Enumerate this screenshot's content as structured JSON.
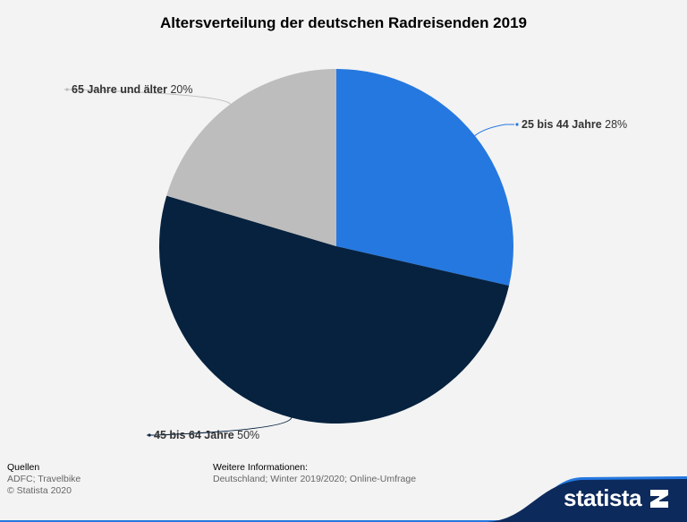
{
  "chart_data": {
    "type": "pie",
    "title": "Altersverteilung der deutschen Radreisenden 2019",
    "slices": [
      {
        "label": "25 bis 44 Jahre",
        "value": 28,
        "value_text": "28%",
        "color": "#2578e0"
      },
      {
        "label": "45 bis 64 Jahre",
        "value": 50,
        "value_text": "50%",
        "color": "#06223f"
      },
      {
        "label": "65 Jahre und älter",
        "value": 20,
        "value_text": "20%",
        "color": "#bdbdbd"
      }
    ]
  },
  "footer": {
    "sources_heading": "Quellen",
    "sources_lines": [
      "ADFC; Travelbike",
      "© Statista 2020"
    ],
    "info_heading": "Weitere Informationen:",
    "info_line": "Deutschland; Winter 2019/2020; Online-Umfrage"
  },
  "brand": {
    "logo_text": "statista",
    "banner_color": "#0d2a5c",
    "accent_color": "#2578e0"
  }
}
